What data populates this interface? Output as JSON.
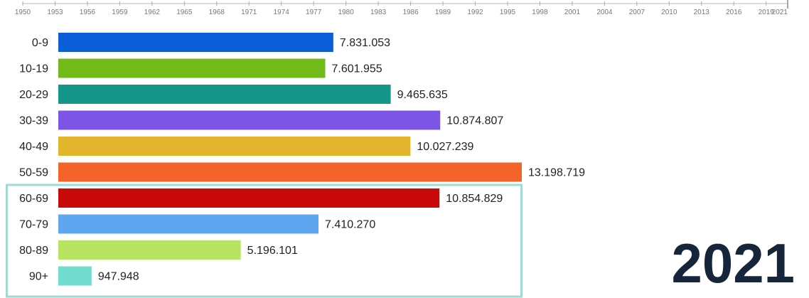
{
  "chart_data": {
    "type": "bar",
    "orientation": "horizontal",
    "categories": [
      "0-9",
      "10-19",
      "20-29",
      "30-39",
      "40-49",
      "50-59",
      "60-69",
      "70-79",
      "80-89",
      "90+"
    ],
    "values": [
      7831053,
      7601955,
      9465635,
      10874807,
      10027239,
      13198719,
      10854829,
      7410270,
      5196101,
      947948
    ],
    "value_labels": [
      "7.831.053",
      "7.601.955",
      "9.465.635",
      "10.874.807",
      "10.027.239",
      "13.198.719",
      "10.854.829",
      "7.410.270",
      "5.196.101",
      "947.948"
    ],
    "colors": [
      "#0b5ed7",
      "#72b91a",
      "#14968a",
      "#7c55e6",
      "#e3b52c",
      "#f4642a",
      "#c80a0a",
      "#5ea6f0",
      "#b7e562",
      "#72dcd0"
    ],
    "xlim": [
      0,
      13198719
    ],
    "timeline": {
      "ticks": [
        "1950",
        "1953",
        "1956",
        "1959",
        "1962",
        "1965",
        "1968",
        "1971",
        "1974",
        "1977",
        "1980",
        "1983",
        "1986",
        "1989",
        "1992",
        "1995",
        "1998",
        "2001",
        "2004",
        "2007",
        "2010",
        "2013",
        "2016",
        "2019",
        "2021"
      ],
      "current": "2021"
    },
    "year": "2021",
    "highlight": {
      "categories": [
        "60-69",
        "70-79",
        "80-89",
        "90+"
      ],
      "color": "#9edbd2"
    },
    "grid": false,
    "legend": "none"
  }
}
